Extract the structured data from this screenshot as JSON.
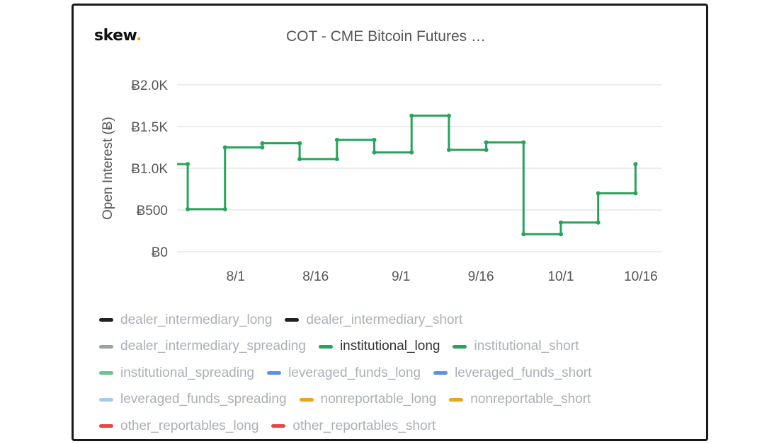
{
  "brand": {
    "logo_text": "skew",
    "logo_dot": ".",
    "accent": "#f0a500"
  },
  "chart_data": {
    "type": "line",
    "step": true,
    "title": "COT - CME Bitcoin Futures …",
    "ylabel": "Open Interest (Ƀ)",
    "xlabel": "",
    "ylim": [
      0,
      2000
    ],
    "xlim": [
      "7/21",
      "10/20"
    ],
    "yticks": [
      {
        "value": 0,
        "label": "Ƀ0"
      },
      {
        "value": 500,
        "label": "Ƀ500"
      },
      {
        "value": 1000,
        "label": "Ƀ1.0K"
      },
      {
        "value": 1500,
        "label": "Ƀ1.5K"
      },
      {
        "value": 2000,
        "label": "Ƀ2.0K"
      }
    ],
    "xticks": [
      "8/1",
      "8/16",
      "9/1",
      "9/16",
      "10/1",
      "10/16"
    ],
    "grid": true,
    "legend_position": "bottom",
    "series": [
      {
        "name": "institutional_long",
        "color": "#27a35a",
        "x": [
          "7/16",
          "7/23",
          "7/30",
          "8/6",
          "8/13",
          "8/20",
          "8/27",
          "9/3",
          "9/10",
          "9/17",
          "9/24",
          "10/1",
          "10/8",
          "10/15"
        ],
        "values": [
          1050,
          510,
          1250,
          1300,
          1110,
          1340,
          1190,
          1630,
          1220,
          1310,
          210,
          350,
          700,
          1050
        ]
      }
    ]
  },
  "legend": [
    [
      {
        "label": "dealer_intermediary_long",
        "color": "#222222",
        "active": false
      },
      {
        "label": "dealer_intermediary_short",
        "color": "#222222",
        "active": false
      }
    ],
    [
      {
        "label": "dealer_intermediary_spreading",
        "color": "#9aa0a6",
        "active": false
      },
      {
        "label": "institutional_long",
        "color": "#27a35a",
        "active": true
      },
      {
        "label": "institutional_short",
        "color": "#27a35a",
        "active": false
      }
    ],
    [
      {
        "label": "institutional_spreading",
        "color": "#6cc48f",
        "active": false
      },
      {
        "label": "leveraged_funds_long",
        "color": "#5b8fe8",
        "active": false
      },
      {
        "label": "leveraged_funds_short",
        "color": "#5b8fe8",
        "active": false
      }
    ],
    [
      {
        "label": "leveraged_funds_spreading",
        "color": "#a9c6f5",
        "active": false
      },
      {
        "label": "nonreportable_long",
        "color": "#e6a520",
        "active": false
      },
      {
        "label": "nonreportable_short",
        "color": "#e6a520",
        "active": false
      }
    ],
    [
      {
        "label": "other_reportables_long",
        "color": "#e84545",
        "active": false
      },
      {
        "label": "other_reportables_short",
        "color": "#e84545",
        "active": false
      }
    ]
  ]
}
